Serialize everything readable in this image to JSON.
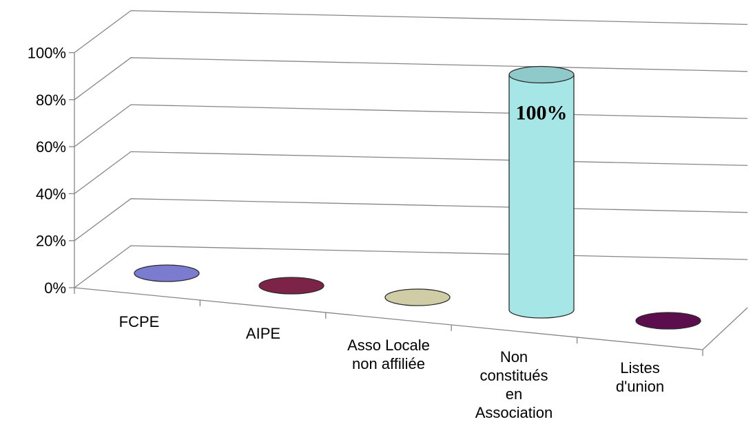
{
  "chart_data": {
    "type": "bar",
    "style": "3d-cylinder",
    "categories": [
      "FCPE",
      "AIPE",
      "Asso Locale\nnon affiliée",
      "Non\nconstitués\nen\nAssociation",
      "Listes\nd'union"
    ],
    "values": [
      0,
      0,
      0,
      100,
      0
    ],
    "data_labels": [
      "",
      "",
      "",
      "100%",
      ""
    ],
    "colors": [
      "#7b7bd0",
      "#7d2348",
      "#cfcca6",
      "#a6e6e6",
      "#5c0d4d"
    ],
    "y_ticks": [
      "0%",
      "20%",
      "40%",
      "60%",
      "80%",
      "100%"
    ],
    "ylim": [
      0,
      100
    ],
    "grid": true,
    "legend": "none"
  }
}
